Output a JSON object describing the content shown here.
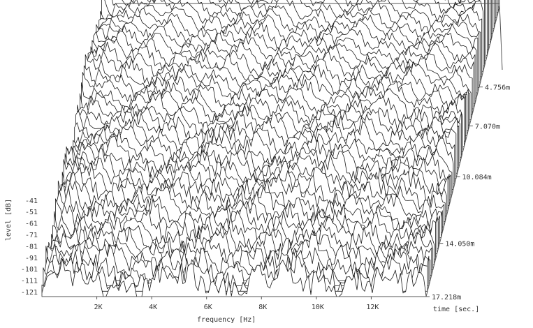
{
  "chart_data": {
    "type": "waterfall",
    "xlabel": "frequency [Hz]",
    "ylabel": "level [dB]",
    "zlabel": "time [sec.]",
    "x_ticks": [
      "2K",
      "4K",
      "6K",
      "8K",
      "10K",
      "12K"
    ],
    "x_tick_values": [
      2000,
      4000,
      6000,
      8000,
      10000,
      12000
    ],
    "xlim": [
      0,
      14000
    ],
    "y_ticks": [
      "-41",
      "-51",
      "-61",
      "-71",
      "-81",
      "-91",
      "-101",
      "-111",
      "-121"
    ],
    "y_tick_values": [
      -41,
      -51,
      -61,
      -71,
      -81,
      -91,
      -101,
      -111,
      -121
    ],
    "ylim": [
      -121,
      -41
    ],
    "z_ticks": [
      "4.756m",
      "7.070m",
      "10.084m",
      "14.050m",
      "17.218m"
    ],
    "z_tick_values": [
      4.756,
      7.07,
      10.084,
      14.05,
      17.218
    ],
    "zlim": [
      0,
      17.218
    ],
    "grid": true,
    "series_count": 55,
    "colors": {
      "trace": "#1a1a1a",
      "fill": "#ffffff",
      "grid": "#777777",
      "text": "#333333"
    }
  }
}
